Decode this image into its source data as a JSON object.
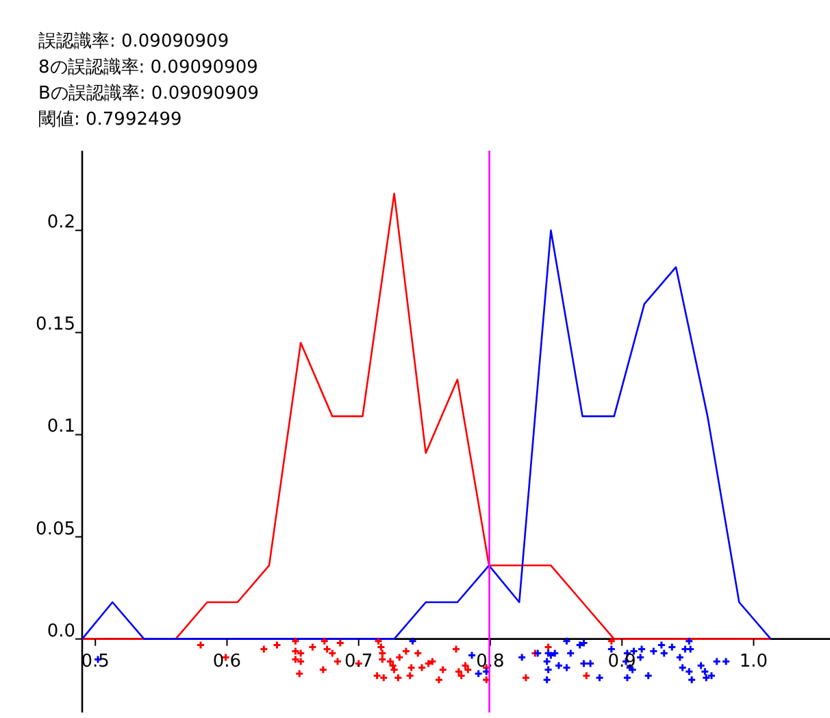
{
  "chart_data": {
    "type": "line",
    "annotations": [
      "誤認識率: 0.09090909",
      "8の誤認識率: 0.09090909",
      "Bの誤認識率: 0.09090909",
      "閾値: 0.7992499"
    ],
    "x": [
      0.49,
      0.513,
      0.537,
      0.561,
      0.585,
      0.608,
      0.632,
      0.656,
      0.68,
      0.703,
      0.727,
      0.751,
      0.775,
      0.799,
      0.822,
      0.846,
      0.87,
      0.894,
      0.917,
      0.941,
      0.965,
      0.989,
      1.013
    ],
    "series": [
      {
        "color": "#ff0000",
        "values": [
          0,
          0,
          0,
          0,
          0.018,
          0.018,
          0.036,
          0.145,
          0.109,
          0.109,
          0.218,
          0.091,
          0.127,
          0.036,
          0.036,
          0.036,
          0.018,
          0,
          0,
          0,
          0,
          0,
          0
        ]
      },
      {
        "color": "#0000ff",
        "values": [
          0,
          0.018,
          0,
          0,
          0,
          0,
          0,
          0,
          0,
          0,
          0,
          0.018,
          0.018,
          0.036,
          0.018,
          0.2,
          0.109,
          0.109,
          0.164,
          0.182,
          0.109,
          0.018,
          0
        ]
      },
      {
        "type": "scatter",
        "color": "#ff0000",
        "marker": "cross",
        "x": [
          0.58,
          0.599,
          0.628,
          0.638,
          0.652,
          0.652,
          0.652,
          0.656,
          0.656,
          0.655,
          0.665,
          0.674,
          0.676,
          0.68,
          0.673,
          0.684,
          0.686,
          0.7,
          0.715,
          0.717,
          0.718,
          0.718,
          0.714,
          0.719,
          0.724,
          0.726,
          0.727,
          0.73,
          0.731,
          0.736,
          0.74,
          0.739,
          0.745,
          0.748,
          0.753,
          0.756,
          0.764,
          0.761,
          0.774,
          0.776,
          0.778,
          0.781,
          0.783,
          0.797,
          0.797,
          0.834,
          0.844,
          0.827,
          0.873,
          0.892
        ],
        "values": [
          -0.003,
          -0.009,
          -0.005,
          -0.003,
          -0.001,
          -0.006,
          -0.01,
          -0.007,
          -0.011,
          -0.017,
          -0.004,
          -0.001,
          -0.005,
          -0.007,
          -0.015,
          -0.011,
          -0.002,
          -0.012,
          -0.001,
          -0.004,
          -0.007,
          -0.01,
          -0.018,
          -0.019,
          -0.011,
          -0.013,
          -0.015,
          -0.019,
          -0.009,
          -0.006,
          -0.014,
          -0.018,
          -0.007,
          -0.014,
          -0.012,
          -0.011,
          -0.015,
          -0.02,
          -0.005,
          -0.016,
          -0.018,
          -0.013,
          -0.015,
          -0.014,
          -0.02,
          -0.007,
          -0.004,
          -0.019,
          -0.018,
          -0.001
        ]
      },
      {
        "type": "scatter",
        "color": "#0000ff",
        "marker": "cross",
        "x": [
          0.502,
          0.741,
          0.786,
          0.791,
          0.797,
          0.824,
          0.836,
          0.844,
          0.843,
          0.846,
          0.849,
          0.844,
          0.843,
          0.852,
          0.858,
          0.861,
          0.858,
          0.868,
          0.871,
          0.871,
          0.876,
          0.883,
          0.892,
          0.904,
          0.903,
          0.906,
          0.904,
          0.909,
          0.914,
          0.915,
          0.908,
          0.924,
          0.92,
          0.93,
          0.932,
          0.938,
          0.944,
          0.948,
          0.951,
          0.952,
          0.946,
          0.951,
          0.953,
          0.96,
          0.963,
          0.964,
          0.968,
          0.972,
          0.979
        ],
        "values": [
          -0.01,
          -0.001,
          -0.008,
          -0.017,
          -0.016,
          -0.009,
          -0.007,
          -0.007,
          -0.011,
          -0.008,
          -0.007,
          -0.015,
          -0.02,
          -0.013,
          -0.001,
          -0.007,
          -0.014,
          -0.003,
          -0.002,
          -0.012,
          -0.012,
          -0.019,
          -0.005,
          -0.007,
          -0.011,
          -0.014,
          -0.019,
          -0.006,
          -0.009,
          -0.005,
          -0.015,
          -0.006,
          -0.018,
          -0.003,
          -0.007,
          -0.004,
          -0.009,
          -0.005,
          -0.001,
          -0.005,
          -0.014,
          -0.016,
          -0.02,
          -0.013,
          -0.016,
          -0.019,
          -0.018,
          -0.011,
          -0.011
        ]
      }
    ],
    "xlim": [
      0.49,
      1.058
    ],
    "ylim": [
      -0.036,
      0.239
    ],
    "xticks": [
      0.5,
      0.6,
      0.7,
      0.8,
      0.9,
      {
        "value": 1,
        "label": "1.0"
      }
    ],
    "yticks": [
      {
        "value": 0,
        "label": "0.0"
      },
      0.05,
      0.1,
      0.15,
      0.2
    ],
    "ref_lines": [
      {
        "axis": "x",
        "value": 0.7992499,
        "color": "#ff00ff"
      }
    ],
    "grid": false,
    "marker": "none",
    "line_style": "solid"
  }
}
